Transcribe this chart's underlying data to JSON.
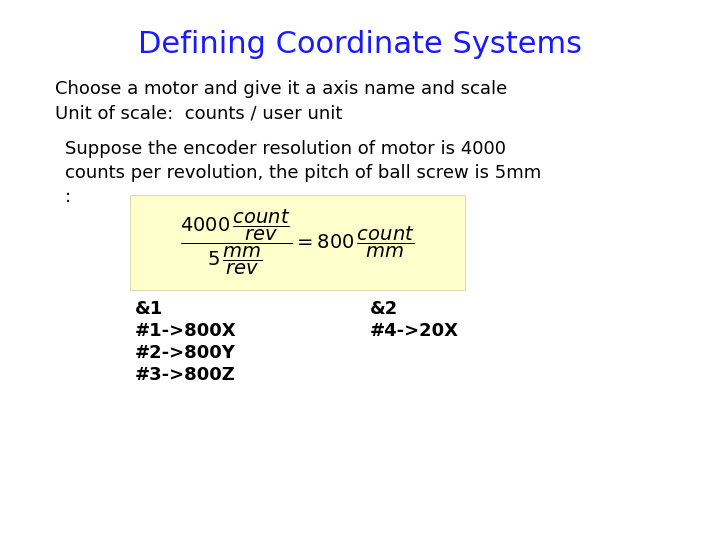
{
  "title": "Defining Coordinate Systems",
  "title_color": "#1a1aff",
  "title_fontsize": 22,
  "background_color": "#ffffff",
  "line1": "Choose a motor and give it a axis name and scale",
  "line2": "Unit of scale:  counts / user unit",
  "para_line1": "Suppose the encoder resolution of motor is 4000",
  "para_line2": "counts per revolution, the pitch of ball screw is 5mm",
  "para_line3": ":",
  "formula_box_color": "#ffffcc",
  "code_col1_lines": [
    "&1",
    "#1->800X",
    "#2->800Y",
    "#3->800Z"
  ],
  "code_col2_lines": [
    "&2",
    "#4->20X"
  ],
  "text_fontsize": 13,
  "code_fontsize": 13,
  "para_fontsize": 13
}
